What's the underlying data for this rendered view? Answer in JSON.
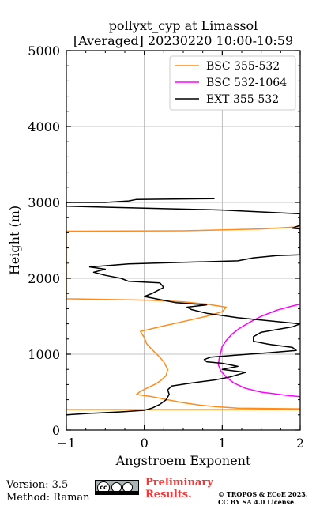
{
  "chart_data": {
    "type": "line",
    "title": "pollyxt_cyp at Limassol",
    "subtitle": "[Averaged] 20230220 10:00-10:59",
    "xlabel": "Angstroem Exponent",
    "ylabel": "Height (m)",
    "xlim": [
      -1,
      2
    ],
    "ylim": [
      0,
      5000
    ],
    "xticks": [
      "−1",
      "0",
      "1",
      "2"
    ],
    "yticks": [
      "0",
      "1000",
      "2000",
      "3000",
      "4000",
      "5000"
    ],
    "grid": true,
    "legend_position": "top-right",
    "series": [
      {
        "name": "BSC 355-532",
        "color": "#ff8c1a",
        "points": [
          [
            -1.0,
            270
          ],
          [
            1.0,
            270
          ],
          [
            2.0,
            270
          ],
          [
            2.0,
            280
          ],
          [
            1.2,
            290
          ],
          [
            0.9,
            310
          ],
          [
            0.7,
            330
          ],
          [
            0.5,
            360
          ],
          [
            0.3,
            400
          ],
          [
            0.1,
            440
          ],
          [
            -0.1,
            470
          ],
          [
            -0.05,
            510
          ],
          [
            0.05,
            560
          ],
          [
            0.15,
            610
          ],
          [
            0.22,
            660
          ],
          [
            0.28,
            720
          ],
          [
            0.3,
            800
          ],
          [
            0.25,
            900
          ],
          [
            0.18,
            980
          ],
          [
            0.1,
            1060
          ],
          [
            0.03,
            1140
          ],
          [
            0.0,
            1220
          ],
          [
            -0.05,
            1300
          ],
          [
            0.2,
            1360
          ],
          [
            0.5,
            1430
          ],
          [
            0.8,
            1500
          ],
          [
            1.0,
            1560
          ],
          [
            1.05,
            1620
          ],
          [
            0.8,
            1660
          ],
          [
            0.5,
            1690
          ],
          [
            0.1,
            1710
          ],
          [
            -1.0,
            1730
          ],
          [
            -1.0,
            2620
          ],
          [
            0.5,
            2625
          ],
          [
            1.5,
            2650
          ],
          [
            2.0,
            2680
          ]
        ]
      },
      {
        "name": "BSC 532-1064",
        "color": "#ff00ff",
        "points": [
          [
            2.0,
            440
          ],
          [
            1.8,
            460
          ],
          [
            1.5,
            500
          ],
          [
            1.3,
            550
          ],
          [
            1.15,
            620
          ],
          [
            1.05,
            700
          ],
          [
            0.98,
            780
          ],
          [
            0.95,
            860
          ],
          [
            0.96,
            940
          ],
          [
            0.98,
            1020
          ],
          [
            1.0,
            1100
          ],
          [
            1.05,
            1180
          ],
          [
            1.12,
            1260
          ],
          [
            1.22,
            1340
          ],
          [
            1.35,
            1420
          ],
          [
            1.5,
            1500
          ],
          [
            1.7,
            1580
          ],
          [
            1.88,
            1630
          ],
          [
            2.0,
            1660
          ]
        ]
      },
      {
        "name": "EXT 355-532",
        "color": "#000000",
        "points": [
          [
            -1.0,
            200
          ],
          [
            -0.7,
            220
          ],
          [
            -0.3,
            240
          ],
          [
            0.0,
            260
          ],
          [
            0.1,
            290
          ],
          [
            0.2,
            340
          ],
          [
            0.28,
            400
          ],
          [
            0.32,
            470
          ],
          [
            0.3,
            530
          ],
          [
            0.35,
            580
          ],
          [
            0.6,
            620
          ],
          [
            0.9,
            660
          ],
          [
            1.1,
            700
          ],
          [
            1.3,
            760
          ],
          [
            1.0,
            800
          ],
          [
            1.2,
            840
          ],
          [
            1.0,
            880
          ],
          [
            0.8,
            900
          ],
          [
            0.77,
            930
          ],
          [
            0.85,
            960
          ],
          [
            1.2,
            990
          ],
          [
            1.6,
            1020
          ],
          [
            1.95,
            1050
          ],
          [
            1.9,
            1090
          ],
          [
            1.6,
            1130
          ],
          [
            1.4,
            1170
          ],
          [
            1.4,
            1230
          ],
          [
            1.5,
            1290
          ],
          [
            1.9,
            1360
          ],
          [
            2.0,
            1400
          ],
          [
            1.6,
            1440
          ],
          [
            1.2,
            1480
          ],
          [
            0.8,
            1540
          ],
          [
            0.6,
            1590
          ],
          [
            0.55,
            1620
          ],
          [
            0.8,
            1650
          ],
          [
            0.4,
            1680
          ],
          [
            0.2,
            1720
          ],
          [
            0.0,
            1760
          ],
          [
            0.1,
            1800
          ],
          [
            0.25,
            1880
          ],
          [
            0.2,
            1940
          ],
          [
            -0.2,
            1960
          ],
          [
            -0.3,
            2000
          ],
          [
            -0.5,
            2040
          ],
          [
            -0.65,
            2080
          ],
          [
            -0.5,
            2120
          ],
          [
            -0.7,
            2150
          ],
          [
            -0.2,
            2190
          ],
          [
            0.5,
            2210
          ],
          [
            1.2,
            2230
          ],
          [
            1.4,
            2270
          ],
          [
            1.7,
            2300
          ],
          [
            2.0,
            2310
          ],
          [
            2.0,
            2650
          ],
          [
            1.9,
            2660
          ],
          [
            2.0,
            2700
          ],
          [
            2.0,
            2850
          ],
          [
            1.0,
            2900
          ],
          [
            -1.0,
            2950
          ],
          [
            -1.0,
            3000
          ],
          [
            -0.5,
            3000
          ],
          [
            -0.2,
            3020
          ],
          [
            -0.1,
            3040
          ],
          [
            0.9,
            3050
          ]
        ]
      }
    ]
  },
  "footer": {
    "version": "Version: 3.5",
    "method": "Method: Raman",
    "preliminary_line1": "Preliminary",
    "preliminary_line2": "Results.",
    "copyright_line1": "© TROPOS & ECoE 2023.",
    "copyright_line2": "CC BY SA 4.0 License."
  },
  "license_badge": {
    "icons": [
      "cc-icon",
      "by-icon",
      "sa-icon"
    ]
  }
}
